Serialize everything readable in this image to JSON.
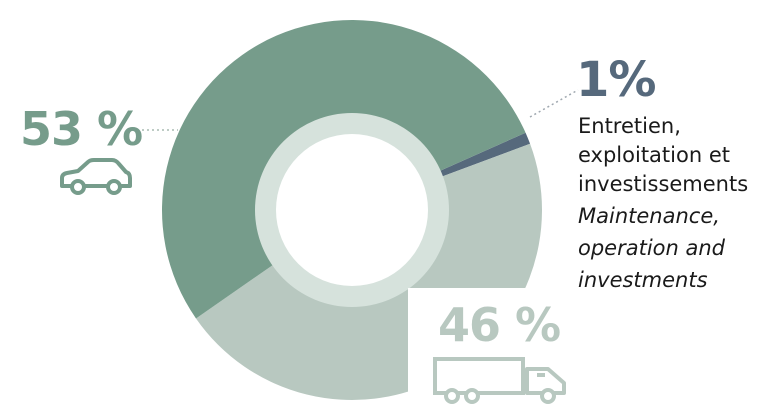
{
  "chart_data": {
    "type": "pie",
    "donut": true,
    "segments": [
      {
        "value": 53,
        "label": "53 %",
        "icon": "car-icon",
        "color": "#769c8b"
      },
      {
        "value": 46,
        "label": "46 %",
        "icon": "truck-icon",
        "color": "#b8c8c0"
      },
      {
        "value": 1,
        "label": "1%",
        "description_fr": [
          "Entretien,",
          "exploitation et",
          "investissements"
        ],
        "description_en": [
          "Maintenance,",
          "operation and",
          "investments"
        ],
        "color": "#56697c"
      }
    ]
  },
  "colors": {
    "cars": "#769c8b",
    "trucks": "#b8c8c0",
    "maintenance": "#56697c",
    "inner_ring": "#d6e2dc",
    "center": "#ffffff"
  }
}
